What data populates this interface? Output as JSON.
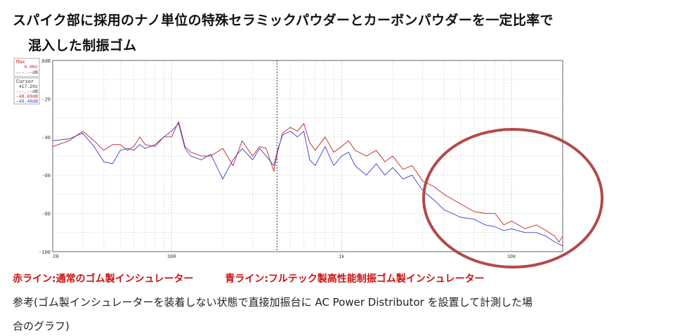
{
  "heading": {
    "line1": "スパイク部に採用のナノ単位の特殊セラミックパウダーとカーボンパウダーを一定比率で",
    "line2": "混入した制振ゴム"
  },
  "chart_data": {
    "type": "line",
    "x_scale": "log",
    "xlim": [
      20,
      20000
    ],
    "ylim": [
      -100,
      0
    ],
    "x_ticks": [
      {
        "value": 20,
        "label": "20"
      },
      {
        "value": 100,
        "label": "100"
      },
      {
        "value": 1000,
        "label": "1k"
      },
      {
        "value": 10000,
        "label": "10k"
      }
    ],
    "y_ticks": [
      {
        "value": 0,
        "label": "0dB"
      },
      {
        "value": -20,
        "label": "-20"
      },
      {
        "value": -40,
        "label": "-40"
      },
      {
        "value": -60,
        "label": "-60"
      },
      {
        "value": -80,
        "label": "-80"
      },
      {
        "value": -100,
        "label": "-100"
      }
    ],
    "cursor_x": 417.2,
    "grid": true,
    "series": [
      {
        "color": "#c42020",
        "x": [
          20,
          25,
          30,
          35,
          40,
          45,
          50,
          55,
          60,
          65,
          70,
          80,
          90,
          100,
          110,
          120,
          130,
          150,
          170,
          200,
          230,
          260,
          300,
          330,
          360,
          400,
          420,
          450,
          500,
          550,
          600,
          650,
          700,
          800,
          900,
          1000,
          1100,
          1200,
          1400,
          1600,
          1800,
          2000,
          2300,
          2600,
          3000,
          3500,
          4000,
          5000,
          6000,
          7000,
          8000,
          9000,
          10000,
          12000,
          14000,
          16000,
          18000,
          19000,
          20000
        ],
        "values": [
          -45,
          -42,
          -37,
          -42,
          -47,
          -44,
          -44,
          -47,
          -45,
          -40,
          -44,
          -45,
          -40,
          -40,
          -32,
          -45,
          -48,
          -50,
          -50,
          -46,
          -55,
          -42,
          -50,
          -45,
          -46,
          -58,
          -48,
          -38,
          -35,
          -37,
          -33,
          -43,
          -47,
          -40,
          -48,
          -45,
          -42,
          -47,
          -50,
          -47,
          -53,
          -50,
          -57,
          -55,
          -63,
          -66,
          -70,
          -75,
          -79,
          -80,
          -80,
          -86,
          -84,
          -88,
          -86,
          -89,
          -92,
          -95,
          -92
        ]
      },
      {
        "color": "#3a3acc",
        "x": [
          20,
          25,
          30,
          35,
          40,
          45,
          50,
          55,
          60,
          65,
          70,
          80,
          90,
          100,
          110,
          120,
          130,
          150,
          170,
          200,
          230,
          260,
          300,
          330,
          360,
          400,
          420,
          450,
          500,
          550,
          600,
          650,
          700,
          800,
          900,
          1000,
          1100,
          1200,
          1400,
          1600,
          1800,
          2000,
          2300,
          2600,
          3000,
          3500,
          4000,
          5000,
          6000,
          7000,
          8000,
          9000,
          10000,
          12000,
          14000,
          16000,
          18000,
          19000,
          20000
        ],
        "values": [
          -42,
          -41,
          -38,
          -45,
          -53,
          -54,
          -47,
          -46,
          -47,
          -44,
          -46,
          -44,
          -40,
          -37,
          -33,
          -46,
          -50,
          -52,
          -49,
          -62,
          -52,
          -46,
          -52,
          -46,
          -50,
          -55,
          -47,
          -39,
          -37,
          -40,
          -37,
          -52,
          -55,
          -45,
          -55,
          -50,
          -48,
          -55,
          -60,
          -54,
          -60,
          -56,
          -62,
          -60,
          -68,
          -73,
          -78,
          -82,
          -83,
          -86,
          -87,
          -89,
          -88,
          -90,
          -90,
          -92,
          -95,
          -96,
          -97
        ]
      }
    ],
    "readout": {
      "max_label": "Max",
      "max_value": "0.0Hz",
      "max_db": "---.--dB",
      "cursor_label": "Cursor",
      "cursor_value": "417.2Hz",
      "cursor_db_black": "---.--dB",
      "cursor_db_red": "-48.69dB",
      "cursor_db_blue": "-49.48dB"
    }
  },
  "legend": {
    "red_label": "赤ライン:通常のゴム製インシュレーター",
    "blue_label": "青ライン:フルテック製高性能制振ゴム製インシュレーター"
  },
  "note": {
    "line1": "参考(ゴム製インシュレーターを装着しない状態で直接加振台に AC Power Distributor を設置して計測した場",
    "line2": "合のグラフ)"
  },
  "colors": {
    "highlight_circle": "#b34a4a",
    "red_series": "#c42020",
    "blue_series": "#3a3acc"
  }
}
